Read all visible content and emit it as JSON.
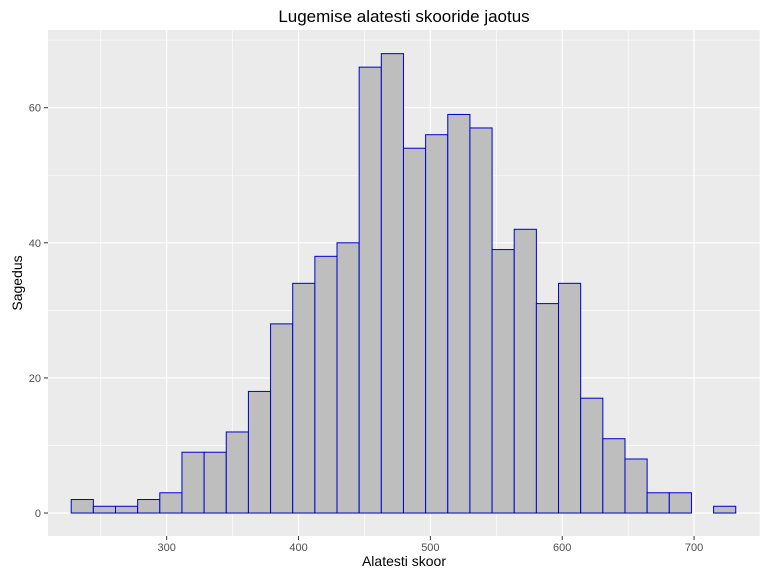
{
  "chart_data": {
    "type": "bar",
    "title": "Lugemise alatesti skooride jaotus",
    "xlabel": "Alatesti skoor",
    "ylabel": "Sagedus",
    "x_ticks": [
      300,
      400,
      500,
      600,
      700
    ],
    "y_ticks": [
      0,
      20,
      40,
      60
    ],
    "xlim": [
      210,
      750
    ],
    "ylim": [
      -3.4,
      71.5
    ],
    "bin_width": 16.8,
    "bin_start": 227.6,
    "values": [
      2,
      1,
      1,
      2,
      3,
      9,
      9,
      12,
      18,
      28,
      34,
      38,
      40,
      66,
      68,
      54,
      56,
      59,
      57,
      39,
      42,
      31,
      34,
      17,
      11,
      8,
      3,
      3,
      0,
      1
    ],
    "grid": true,
    "colors": {
      "panel": "#ebebeb",
      "grid": "#ffffff",
      "bar_fill": "#bebebe",
      "bar_stroke": "#0000cd"
    }
  }
}
